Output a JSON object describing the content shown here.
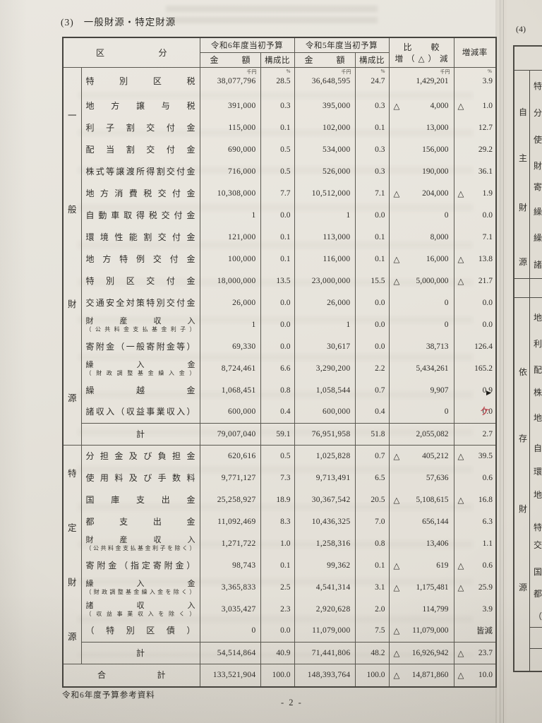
{
  "page": {
    "section_label": "(3)",
    "section_title": "一般財源・特定財源",
    "footer_left": "令和6年度予算参考資料",
    "page_number": "- 2 -",
    "next_page_label": "(4)"
  },
  "annotations": {
    "arrow_marker": "▶",
    "red_pen_mark": "ケ"
  },
  "table": {
    "headers": {
      "category": "区分",
      "fy_r6": "令和6年度当初予算",
      "fy_r5": "令和5年度当初予算",
      "amount": "金額",
      "ratio": "構成比",
      "comparison_line1": "比較",
      "comparison_line2": "増（△）減",
      "change_rate": "増減率",
      "unit_thousand_yen": "千円",
      "unit_percent": "%"
    },
    "sections": [
      {
        "name": "一般財源",
        "group_chars": [
          "一",
          "般",
          "財",
          "源"
        ],
        "rows": [
          {
            "label": "特別区税",
            "label2": null,
            "r6_amount": "38,077,796",
            "r6_ratio": "28.5",
            "r5_amount": "36,648,595",
            "r5_ratio": "24.7",
            "diff_sign": "",
            "diff": "1,429,201",
            "rate_sign": "",
            "rate": "3.9"
          },
          {
            "label": "地方譲与税",
            "label2": null,
            "r6_amount": "391,000",
            "r6_ratio": "0.3",
            "r5_amount": "395,000",
            "r5_ratio": "0.3",
            "diff_sign": "△",
            "diff": "4,000",
            "rate_sign": "△",
            "rate": "1.0"
          },
          {
            "label": "利子割交付金",
            "label2": null,
            "r6_amount": "115,000",
            "r6_ratio": "0.1",
            "r5_amount": "102,000",
            "r5_ratio": "0.1",
            "diff_sign": "",
            "diff": "13,000",
            "rate_sign": "",
            "rate": "12.7"
          },
          {
            "label": "配当割交付金",
            "label2": null,
            "r6_amount": "690,000",
            "r6_ratio": "0.5",
            "r5_amount": "534,000",
            "r5_ratio": "0.3",
            "diff_sign": "",
            "diff": "156,000",
            "rate_sign": "",
            "rate": "29.2"
          },
          {
            "label": "株式等譲渡所得割交付金",
            "label2": null,
            "r6_amount": "716,000",
            "r6_ratio": "0.5",
            "r5_amount": "526,000",
            "r5_ratio": "0.3",
            "diff_sign": "",
            "diff": "190,000",
            "rate_sign": "",
            "rate": "36.1"
          },
          {
            "label": "地方消費税交付金",
            "label2": null,
            "r6_amount": "10,308,000",
            "r6_ratio": "7.7",
            "r5_amount": "10,512,000",
            "r5_ratio": "7.1",
            "diff_sign": "△",
            "diff": "204,000",
            "rate_sign": "△",
            "rate": "1.9"
          },
          {
            "label": "自動車取得税交付金",
            "label2": null,
            "r6_amount": "1",
            "r6_ratio": "0.0",
            "r5_amount": "1",
            "r5_ratio": "0.0",
            "diff_sign": "",
            "diff": "0",
            "rate_sign": "",
            "rate": "0.0"
          },
          {
            "label": "環境性能割交付金",
            "label2": null,
            "r6_amount": "121,000",
            "r6_ratio": "0.1",
            "r5_amount": "113,000",
            "r5_ratio": "0.1",
            "diff_sign": "",
            "diff": "8,000",
            "rate_sign": "",
            "rate": "7.1"
          },
          {
            "label": "地方特例交付金",
            "label2": null,
            "r6_amount": "100,000",
            "r6_ratio": "0.1",
            "r5_amount": "116,000",
            "r5_ratio": "0.1",
            "diff_sign": "△",
            "diff": "16,000",
            "rate_sign": "△",
            "rate": "13.8"
          },
          {
            "label": "特別区交付金",
            "label2": null,
            "r6_amount": "18,000,000",
            "r6_ratio": "13.5",
            "r5_amount": "23,000,000",
            "r5_ratio": "15.5",
            "diff_sign": "△",
            "diff": "5,000,000",
            "rate_sign": "△",
            "rate": "21.7"
          },
          {
            "label": "交通安全対策特別交付金",
            "label2": null,
            "r6_amount": "26,000",
            "r6_ratio": "0.0",
            "r5_amount": "26,000",
            "r5_ratio": "0.0",
            "diff_sign": "",
            "diff": "0",
            "rate_sign": "",
            "rate": "0.0"
          },
          {
            "label": "財産収入",
            "label2": "（公共料金支払基金利子）",
            "r6_amount": "1",
            "r6_ratio": "0.0",
            "r5_amount": "1",
            "r5_ratio": "0.0",
            "diff_sign": "",
            "diff": "0",
            "rate_sign": "",
            "rate": "0.0"
          },
          {
            "label": "寄附金（一般寄附金等）",
            "label2": null,
            "r6_amount": "69,330",
            "r6_ratio": "0.0",
            "r5_amount": "30,617",
            "r5_ratio": "0.0",
            "diff_sign": "",
            "diff": "38,713",
            "rate_sign": "",
            "rate": "126.4"
          },
          {
            "label": "繰入金",
            "label2": "（財政調整基金繰入金）",
            "r6_amount": "8,724,461",
            "r6_ratio": "6.6",
            "r5_amount": "3,290,200",
            "r5_ratio": "2.2",
            "diff_sign": "",
            "diff": "5,434,261",
            "rate_sign": "",
            "rate": "165.2"
          },
          {
            "label": "繰越金",
            "label2": null,
            "r6_amount": "1,068,451",
            "r6_ratio": "0.8",
            "r5_amount": "1,058,544",
            "r5_ratio": "0.7",
            "diff_sign": "",
            "diff": "9,907",
            "rate_sign": "",
            "rate": "0.9"
          },
          {
            "label": "諸収入（収益事業収入）",
            "label2": null,
            "r6_amount": "600,000",
            "r6_ratio": "0.4",
            "r5_amount": "600,000",
            "r5_ratio": "0.4",
            "diff_sign": "",
            "diff": "0",
            "rate_sign": "",
            "rate": "0.0"
          }
        ],
        "subtotal": {
          "label": "計",
          "r6_amount": "79,007,040",
          "r6_ratio": "59.1",
          "r5_amount": "76,951,958",
          "r5_ratio": "51.8",
          "diff_sign": "",
          "diff": "2,055,082",
          "rate_sign": "",
          "rate": "2.7"
        }
      },
      {
        "name": "特定財源",
        "group_chars": [
          "特",
          "定",
          "財",
          "源"
        ],
        "rows": [
          {
            "label": "分担金及び負担金",
            "label2": null,
            "r6_amount": "620,616",
            "r6_ratio": "0.5",
            "r5_amount": "1,025,828",
            "r5_ratio": "0.7",
            "diff_sign": "△",
            "diff": "405,212",
            "rate_sign": "△",
            "rate": "39.5"
          },
          {
            "label": "使用料及び手数料",
            "label2": null,
            "r6_amount": "9,771,127",
            "r6_ratio": "7.3",
            "r5_amount": "9,713,491",
            "r5_ratio": "6.5",
            "diff_sign": "",
            "diff": "57,636",
            "rate_sign": "",
            "rate": "0.6"
          },
          {
            "label": "国庫支出金",
            "label2": null,
            "r6_amount": "25,258,927",
            "r6_ratio": "18.9",
            "r5_amount": "30,367,542",
            "r5_ratio": "20.5",
            "diff_sign": "△",
            "diff": "5,108,615",
            "rate_sign": "△",
            "rate": "16.8"
          },
          {
            "label": "都支出金",
            "label2": null,
            "r6_amount": "11,092,469",
            "r6_ratio": "8.3",
            "r5_amount": "10,436,325",
            "r5_ratio": "7.0",
            "diff_sign": "",
            "diff": "656,144",
            "rate_sign": "",
            "rate": "6.3"
          },
          {
            "label": "財産収入",
            "label2": "（公共料金支払基金利子を除く）",
            "r6_amount": "1,271,722",
            "r6_ratio": "1.0",
            "r5_amount": "1,258,316",
            "r5_ratio": "0.8",
            "diff_sign": "",
            "diff": "13,406",
            "rate_sign": "",
            "rate": "1.1"
          },
          {
            "label": "寄附金（指定寄附金）",
            "label2": null,
            "r6_amount": "98,743",
            "r6_ratio": "0.1",
            "r5_amount": "99,362",
            "r5_ratio": "0.1",
            "diff_sign": "△",
            "diff": "619",
            "rate_sign": "△",
            "rate": "0.6"
          },
          {
            "label": "繰入金",
            "label2": "（財政調整基金繰入金を除く）",
            "r6_amount": "3,365,833",
            "r6_ratio": "2.5",
            "r5_amount": "4,541,314",
            "r5_ratio": "3.1",
            "diff_sign": "△",
            "diff": "1,175,481",
            "rate_sign": "△",
            "rate": "25.9"
          },
          {
            "label": "諸収入",
            "label2": "（収益事業収入を除く）",
            "r6_amount": "3,035,427",
            "r6_ratio": "2.3",
            "r5_amount": "2,920,628",
            "r5_ratio": "2.0",
            "diff_sign": "",
            "diff": "114,799",
            "rate_sign": "",
            "rate": "3.9"
          },
          {
            "label": "（特別区債）",
            "label2": null,
            "r6_amount": "0",
            "r6_ratio": "0.0",
            "r5_amount": "11,079,000",
            "r5_ratio": "7.5",
            "diff_sign": "△",
            "diff": "11,079,000",
            "rate_sign": "",
            "rate": "皆減"
          }
        ],
        "subtotal": {
          "label": "計",
          "r6_amount": "54,514,864",
          "r6_ratio": "40.9",
          "r5_amount": "71,441,806",
          "r5_ratio": "48.2",
          "diff_sign": "△",
          "diff": "16,926,942",
          "rate_sign": "△",
          "rate": "23.7"
        }
      }
    ],
    "total": {
      "label": "合計",
      "r6_amount": "133,521,904",
      "r6_ratio": "100.0",
      "r5_amount": "148,393,764",
      "r5_ratio": "100.0",
      "diff_sign": "△",
      "diff": "14,871,860",
      "rate_sign": "△",
      "rate": "10.0"
    }
  },
  "next_page": {
    "group_chars_top": [
      "自",
      "主",
      "財",
      "源"
    ],
    "group_chars_bottom": [
      "依",
      "存",
      "財",
      "源"
    ],
    "row_chars_top": [
      "特",
      "分",
      "使",
      "財",
      "寄",
      "繰",
      "繰",
      "諸"
    ],
    "row_chars_mid": [
      "地",
      "利",
      "配",
      "株",
      "地",
      "自",
      "環",
      "地",
      "特"
    ],
    "row_chars_bottom": [
      "交",
      "国",
      "都",
      "（"
    ]
  }
}
